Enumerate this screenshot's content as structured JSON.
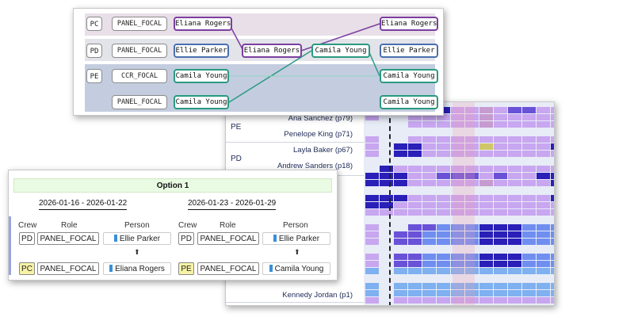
{
  "schedule": {
    "crews": [
      {
        "label": "PE",
        "members": [
          "Aria Sanchez (p79)",
          "Penelope King (p71)"
        ]
      },
      {
        "label": "PD",
        "members": [
          "Layla Baker (p67)",
          "Andrew Sanders (p18)"
        ]
      }
    ],
    "bottom_member": "Kennedy Jordan (p1)",
    "colors": {
      "dark": "#2a1fb8",
      "medium": "#6a52d8",
      "light": "#c8a6f0",
      "paler": "#b9a0ee",
      "blue": "#6f8ef0",
      "skyblue": "#7fb0f0",
      "yellow": "#cfc66a",
      "hatch": "#c69bd0"
    }
  },
  "swap": {
    "rows": [
      {
        "crew": "PC",
        "role": "PANEL_FOCAL",
        "before": "Eliana Rogers",
        "after": "Eliana Rogers"
      },
      {
        "crew": "PD",
        "role": "PANEL_FOCAL",
        "before": "Ellie Parker",
        "middle_a": "Eliana Rogers",
        "middle_b": "Camila Young",
        "after": "Ellie Parker"
      },
      {
        "crew": "PE",
        "role": "CCR_FOCAL",
        "before": "Camila Young",
        "after": "Camila Young"
      },
      {
        "crew": "",
        "role": "PANEL_FOCAL",
        "before": "Camila Young",
        "after": "Camila Young"
      }
    ],
    "colors": {
      "pc_band": "#e8dfe8",
      "pd_band": "#e3e3ea",
      "pe_band": "#c4cde0",
      "purple": "#7b3fa0",
      "green": "#2a9a80",
      "blue": "#4a6fb0"
    }
  },
  "option": {
    "title": "Option 1",
    "periods": [
      {
        "range": "2026-01-16 - 2026-01-22",
        "headers": {
          "crew": "Crew",
          "role": "Role",
          "person": "Person"
        },
        "rows": [
          {
            "crew": "PD",
            "role": "PANEL_FOCAL",
            "person": "Ellie Parker",
            "highlight": false
          },
          {
            "crew": "PC",
            "role": "PANEL_FOCAL",
            "person": "Eliana Rogers",
            "highlight": true
          }
        ]
      },
      {
        "range": "2026-01-23 - 2026-01-29",
        "headers": {
          "crew": "Crew",
          "role": "Role",
          "person": "Person"
        },
        "rows": [
          {
            "crew": "PD",
            "role": "PANEL_FOCAL",
            "person": "Ellie Parker",
            "highlight": false
          },
          {
            "crew": "PE",
            "role": "PANEL_FOCAL",
            "person": "Camila Young",
            "highlight": true
          }
        ]
      }
    ],
    "arrow_icon": "arrow-up-icon"
  }
}
